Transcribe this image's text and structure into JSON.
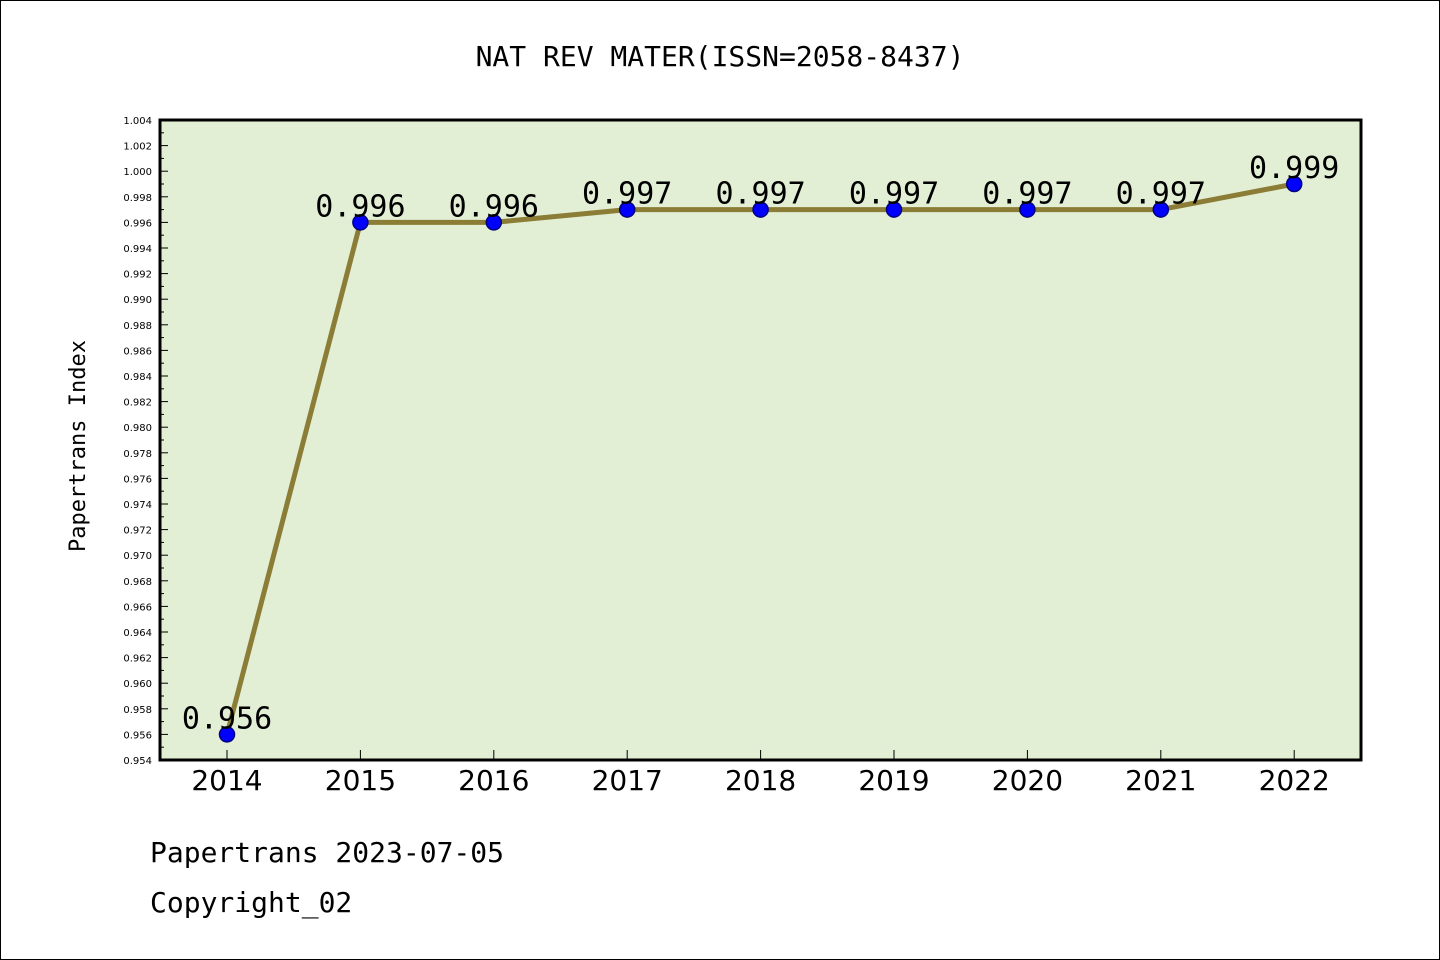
{
  "chart_data": {
    "type": "line",
    "title": "NAT REV MATER(ISSN=2058-8437)",
    "xlabel": "",
    "ylabel": "Papertrans Index",
    "categories": [
      "2014",
      "2015",
      "2016",
      "2017",
      "2018",
      "2019",
      "2020",
      "2021",
      "2022"
    ],
    "series": [
      {
        "values": [
          0.956,
          0.996,
          0.996,
          0.997,
          0.997,
          0.997,
          0.997,
          0.997,
          0.999
        ],
        "labels": [
          "0.956",
          "0.996",
          "0.996",
          "0.997",
          "0.997",
          "0.997",
          "0.997",
          "0.997",
          "0.999"
        ]
      }
    ],
    "ylim": [
      0.954,
      1.004
    ],
    "yticks": [
      "0.954",
      "0.956",
      "0.958",
      "0.960",
      "0.962",
      "0.964",
      "0.966",
      "0.968",
      "0.970",
      "0.972",
      "0.974",
      "0.976",
      "0.978",
      "0.980",
      "0.982",
      "0.984",
      "0.986",
      "0.988",
      "0.990",
      "0.992",
      "0.994",
      "0.996",
      "0.998",
      "1.000",
      "1.002",
      "1.004"
    ],
    "grid": false,
    "legend": "none",
    "colors": {
      "plot_background": "#e2efd5",
      "line": "#8b7d35",
      "marker": "#0000ff",
      "marker_edge": "#000080"
    }
  },
  "footer": {
    "date_text": "Papertrans 2023-07-05",
    "copyright_text": "Copyright_02"
  }
}
